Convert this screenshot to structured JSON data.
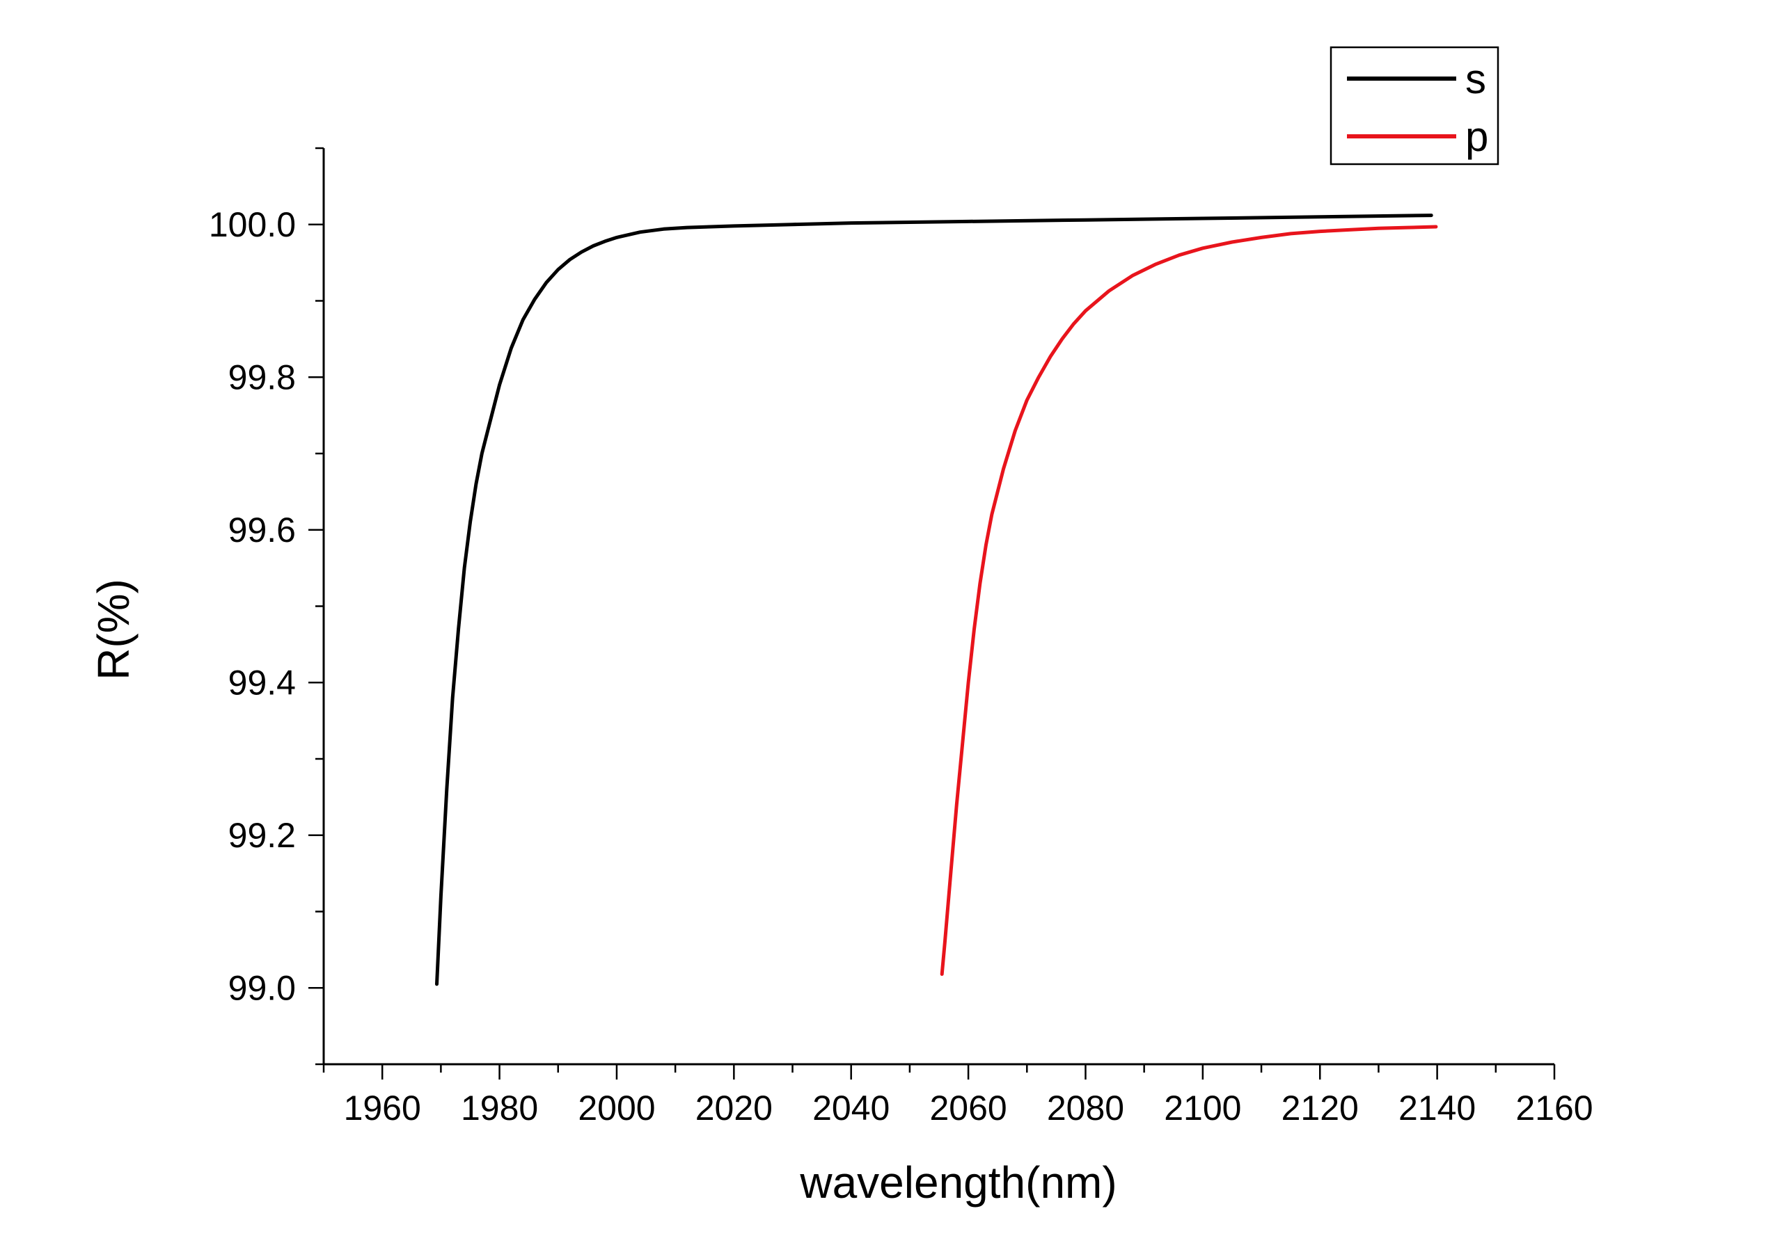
{
  "chart_data": {
    "type": "line",
    "xlabel": "wavelength(nm)",
    "ylabel": "R(%)",
    "xlim": [
      1950,
      2160
    ],
    "ylim": [
      98.9,
      100.1
    ],
    "x_ticks": [
      "1960",
      "1980",
      "2000",
      "2020",
      "2040",
      "2060",
      "2080",
      "2100",
      "2120",
      "2140",
      "2160"
    ],
    "y_ticks": [
      "99.0",
      "99.2",
      "99.4",
      "99.6",
      "99.8",
      "100.0"
    ],
    "grid": false,
    "legend_position": "top-right",
    "series": [
      {
        "name": "s",
        "color": "#000000",
        "x": [
          1969.3,
          1970,
          1971,
          1972,
          1973,
          1974,
          1975,
          1976,
          1977,
          1978,
          1980,
          1982,
          1984,
          1986,
          1988,
          1990,
          1992,
          1994,
          1996,
          1998,
          2000,
          2004,
          2008,
          2012,
          2016,
          2020,
          2030,
          2040,
          2060,
          2080,
          2100,
          2120,
          2139
        ],
        "y": [
          99.005,
          99.12,
          99.26,
          99.38,
          99.47,
          99.55,
          99.61,
          99.66,
          99.7,
          99.73,
          99.79,
          99.838,
          99.875,
          99.902,
          99.924,
          99.941,
          99.954,
          99.964,
          99.972,
          99.978,
          99.983,
          99.99,
          99.994,
          99.996,
          99.997,
          99.998,
          100.0,
          100.002,
          100.004,
          100.006,
          100.008,
          100.01,
          100.012
        ]
      },
      {
        "name": "p",
        "color": "#e8141c",
        "x": [
          2055.5,
          2056,
          2057,
          2058,
          2059,
          2060,
          2061,
          2062,
          2063,
          2064,
          2066,
          2068,
          2070,
          2072,
          2074,
          2076,
          2078,
          2080,
          2084,
          2088,
          2092,
          2096,
          2100,
          2105,
          2110,
          2115,
          2120,
          2125,
          2130,
          2135,
          2139.8
        ],
        "y": [
          99.018,
          99.06,
          99.15,
          99.24,
          99.32,
          99.4,
          99.47,
          99.53,
          99.58,
          99.62,
          99.68,
          99.73,
          99.77,
          99.8,
          99.827,
          99.85,
          99.87,
          99.887,
          99.913,
          99.933,
          99.948,
          99.96,
          99.969,
          99.977,
          99.983,
          99.988,
          99.991,
          99.993,
          99.995,
          99.996,
          99.997
        ]
      }
    ]
  }
}
